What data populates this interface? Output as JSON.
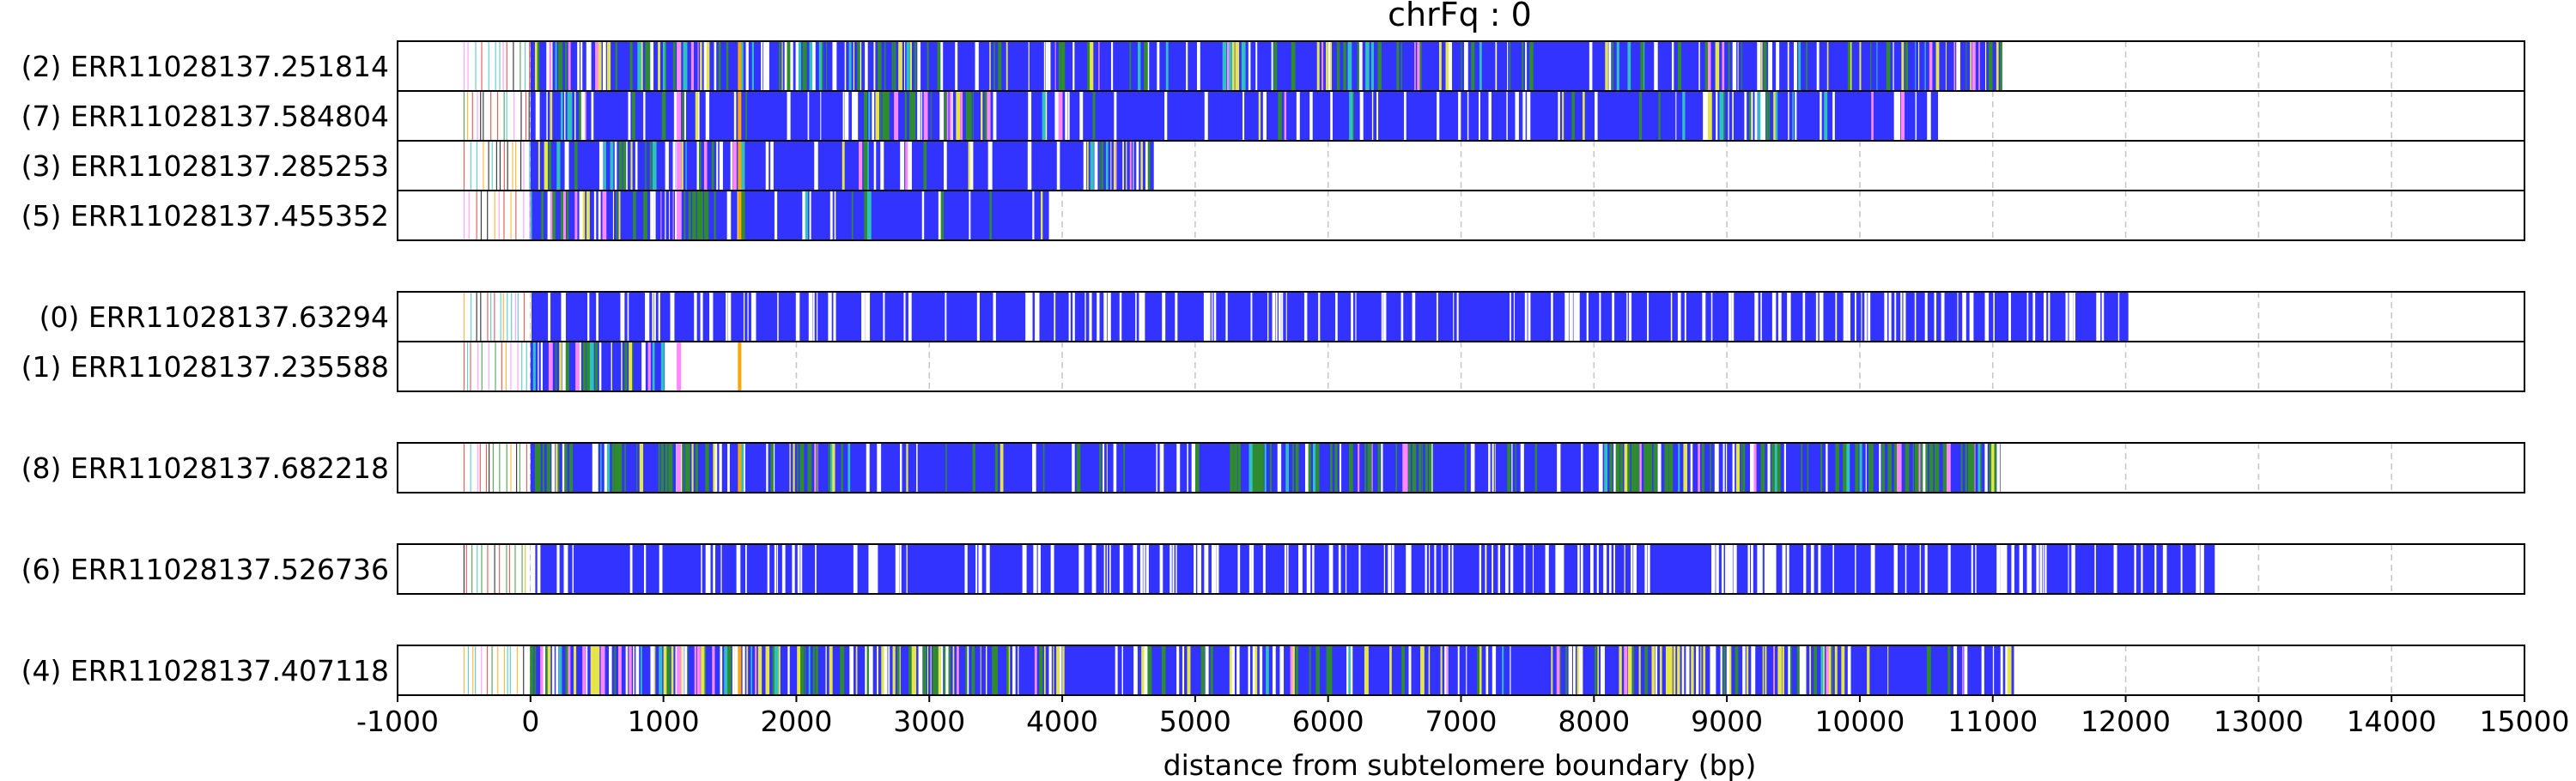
{
  "chart_data": {
    "type": "read_track_plot",
    "title": "chrFq : 0",
    "xlabel": "distance from subtelomere boundary (bp)",
    "xlim": [
      -1000,
      15000
    ],
    "xticks": [
      -1000,
      0,
      1000,
      2000,
      3000,
      4000,
      5000,
      6000,
      7000,
      8000,
      9000,
      10000,
      11000,
      12000,
      13000,
      14000,
      15000
    ],
    "xtick_labels": [
      "-1000",
      "0",
      "1000",
      "2000",
      "3000",
      "4000",
      "5000",
      "6000",
      "7000",
      "8000",
      "9000",
      "10000",
      "11000",
      "12000",
      "13000",
      "14000",
      "15000"
    ],
    "grid": "vertical dashed",
    "colors": {
      "telomere_repeat": "#3333ff",
      "green": "#2e8b2e",
      "yellow": "#e6e64a",
      "orange": "#ffa500",
      "pink": "#ff88ff",
      "red": "#e03030",
      "cyan": "#30c0c0",
      "gray_grid": "#c8c8c8"
    },
    "groups": [
      {
        "reads": [
          {
            "label": "(2) ERR11028137.251814",
            "start": -500,
            "end": 11070,
            "pattern": "mixed_heavy"
          },
          {
            "label": "(7) ERR11028137.584804",
            "start": -500,
            "end": 10590,
            "pattern": "blue_mid_green"
          },
          {
            "label": "(3) ERR11028137.285253",
            "start": -500,
            "end": 4700,
            "pattern": "blue_short"
          },
          {
            "label": "(5) ERR11028137.455352",
            "start": -500,
            "end": 3900,
            "pattern": "blue_short"
          }
        ]
      },
      {
        "reads": [
          {
            "label": "(0) ERR11028137.63294",
            "start": -500,
            "end": 12020,
            "pattern": "blue_white"
          },
          {
            "label": "(1) ERR11028137.235588",
            "start": -500,
            "end": 1010,
            "pattern": "blue_green_short"
          }
        ]
      },
      {
        "reads": [
          {
            "label": "(8) ERR11028137.682218",
            "start": -500,
            "end": 11060,
            "pattern": "green_mixed"
          }
        ]
      },
      {
        "reads": [
          {
            "label": "(6) ERR11028137.526736",
            "start": -500,
            "end": 12670,
            "pattern": "blue_white"
          }
        ]
      },
      {
        "reads": [
          {
            "label": "(4) ERR11028137.407118",
            "start": -500,
            "end": 11160,
            "pattern": "mixed_yellow"
          }
        ]
      }
    ]
  }
}
